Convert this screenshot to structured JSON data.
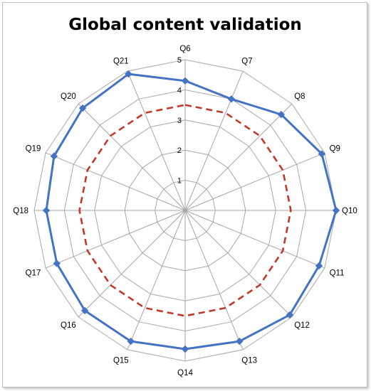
{
  "chart_data": {
    "type": "radar",
    "title": "Global content validation",
    "categories": [
      "Q6",
      "Q7",
      "Q8",
      "Q9",
      "Q10",
      "Q11",
      "Q12",
      "Q13",
      "Q14",
      "Q15",
      "Q16",
      "Q17",
      "Q18",
      "Q19",
      "Q20",
      "Q21"
    ],
    "rlim": [
      0,
      5
    ],
    "rticks": [
      1,
      2,
      3,
      4,
      5
    ],
    "grid": true,
    "legend": "none",
    "series": [
      {
        "values": [
          4.3,
          4.0,
          4.5,
          4.9,
          5.0,
          4.8,
          4.9,
          4.7,
          4.6,
          4.7,
          4.7,
          4.6,
          4.6,
          4.7,
          4.8,
          4.9
        ],
        "color": "#4472c4",
        "style": "solid",
        "marker": "diamond"
      },
      {
        "values": [
          3.5,
          3.5,
          3.5,
          3.5,
          3.5,
          3.5,
          3.5,
          3.5,
          3.5,
          3.5,
          3.5,
          3.5,
          3.5,
          3.5,
          3.5,
          3.5
        ],
        "color": "#c0392b",
        "style": "dashed",
        "marker": "none"
      }
    ]
  }
}
